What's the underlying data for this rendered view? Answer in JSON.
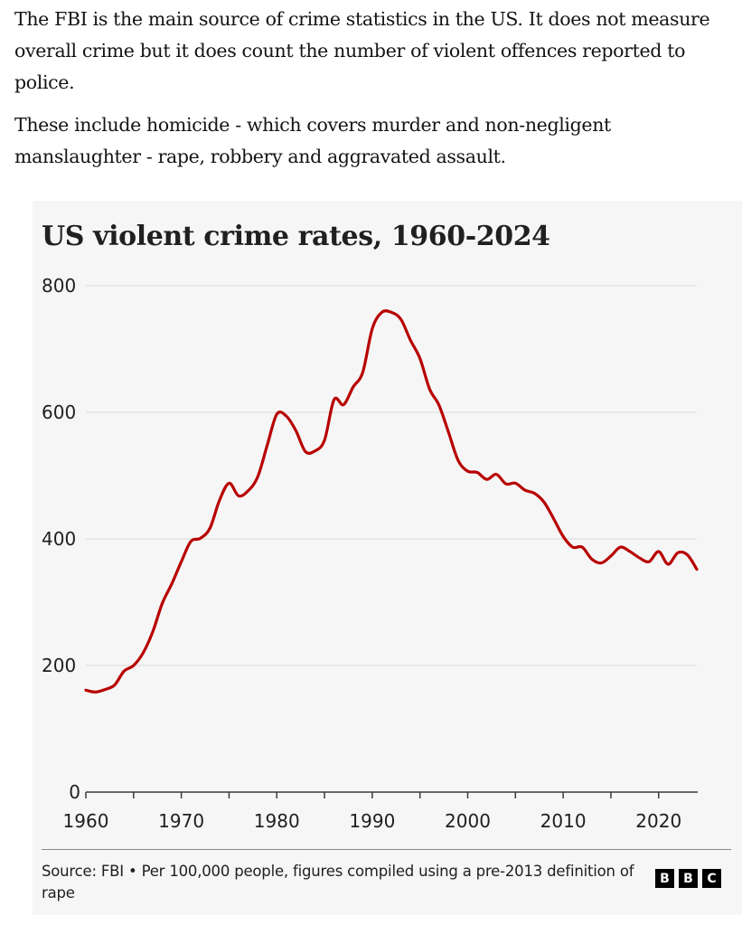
{
  "intro": {
    "paragraphs": [
      "The FBI is the main source of crime statistics in the US. It does not measure overall crime but it does count the number of violent offences reported to police.",
      "These include homicide - which covers murder and non-negligent manslaughter - rape, robbery and aggravated assault."
    ]
  },
  "chart_data": {
    "type": "line",
    "title": "US violent crime rates, 1960-2024",
    "xlabel": "",
    "ylabel": "",
    "xlim": [
      1960,
      2024
    ],
    "ylim": [
      0,
      800
    ],
    "yticks": [
      0,
      200,
      400,
      600,
      800
    ],
    "ytick_labels": [
      "0",
      "200",
      "400",
      "600",
      "800"
    ],
    "xticks_minor": [
      1960,
      1965,
      1970,
      1975,
      1980,
      1985,
      1990,
      1995,
      2000,
      2005,
      2010,
      2015,
      2020
    ],
    "xticks": [
      1960,
      1970,
      1980,
      1990,
      2000,
      2010,
      2020
    ],
    "xtick_labels": [
      "1960",
      "1970",
      "1980",
      "1990",
      "2000",
      "2010",
      "2020"
    ],
    "grid": "horizontal",
    "legend": "none",
    "series": [
      {
        "name": "Violent crime rate per 100,000 people",
        "color": "#b80000",
        "x": [
          1960,
          1961,
          1962,
          1963,
          1964,
          1965,
          1966,
          1967,
          1968,
          1969,
          1970,
          1971,
          1972,
          1973,
          1974,
          1975,
          1976,
          1977,
          1978,
          1979,
          1980,
          1981,
          1982,
          1983,
          1984,
          1985,
          1986,
          1987,
          1988,
          1989,
          1990,
          1991,
          1992,
          1993,
          1994,
          1995,
          1996,
          1997,
          1998,
          1999,
          2000,
          2001,
          2002,
          2003,
          2004,
          2005,
          2006,
          2007,
          2008,
          2009,
          2010,
          2011,
          2012,
          2013,
          2014,
          2015,
          2016,
          2017,
          2018,
          2019,
          2020,
          2021,
          2022,
          2023,
          2024
        ],
        "values": [
          161,
          158,
          162,
          169,
          191,
          200,
          220,
          253,
          298,
          329,
          364,
          396,
          401,
          417,
          461,
          488,
          468,
          476,
          498,
          548,
          597,
          594,
          571,
          538,
          539,
          556,
          620,
          612,
          640,
          663,
          732,
          758,
          758,
          747,
          714,
          685,
          637,
          611,
          568,
          524,
          507,
          505,
          494,
          502,
          487,
          488,
          477,
          472,
          458,
          432,
          404,
          387,
          387,
          368,
          362,
          373,
          387,
          380,
          370,
          364,
          380,
          360,
          378,
          375,
          352
        ]
      }
    ]
  },
  "footer": {
    "source": "Source: FBI • Per 100,000 people, figures compiled using a pre-2013 definition of rape",
    "logo_letters": [
      "B",
      "B",
      "C"
    ]
  }
}
